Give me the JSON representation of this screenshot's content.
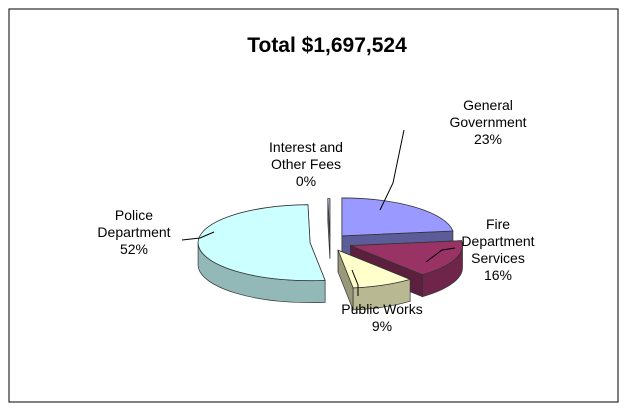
{
  "chart_data": {
    "type": "pie",
    "title": "Total  $1,697,524",
    "slices": [
      {
        "label_lines": [
          "General",
          "Government"
        ],
        "percent_label": "23%",
        "value": 23,
        "color": "#9999ff"
      },
      {
        "label_lines": [
          "Fire",
          "Department",
          "Services"
        ],
        "percent_label": "16%",
        "value": 16,
        "color": "#993366"
      },
      {
        "label_lines": [
          "Public  Works"
        ],
        "percent_label": "9%",
        "value": 9,
        "color": "#ffffcc"
      },
      {
        "label_lines": [
          "Police",
          "Department"
        ],
        "percent_label": "52%",
        "value": 52,
        "color": "#ccffff"
      },
      {
        "label_lines": [
          "Interest  and",
          "Other  Fees"
        ],
        "percent_label": "0%",
        "value": 0.3,
        "color": "#ccccff"
      }
    ],
    "legend": "none",
    "style": "3d-exploded"
  }
}
